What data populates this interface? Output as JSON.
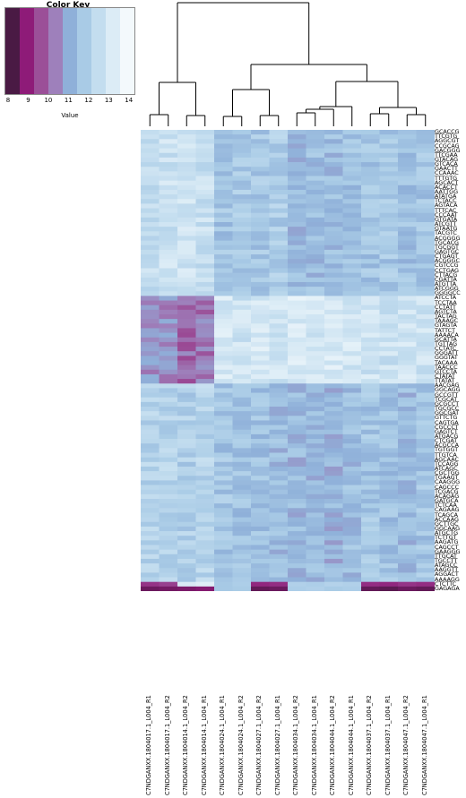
{
  "color_key": {
    "title": "Color Key",
    "xlabel": "Value",
    "ticks": [
      "8",
      "9",
      "10",
      "11",
      "12",
      "13",
      "14"
    ],
    "colors": [
      "#4a1a44",
      "#8e1b78",
      "#9b4f98",
      "#9e80bb",
      "#8fb0d9",
      "#a9cbe6",
      "#c3ddef",
      "#dcecf6",
      "#f3f9fc"
    ],
    "range": [
      8,
      14.5
    ]
  },
  "chart_data": {
    "type": "heatmap",
    "columns": [
      "C7NDGANXX.1804017.1_L004_R1",
      "C7NDGANXX.1804017.1_L004_R2",
      "C7NDGANXX.1804014.1_L004_R2",
      "C7NDGANXX.1804014.1_L004_R1",
      "C7NDGANXX.1804024.1_L004_R1",
      "C7NDGANXX.1804024.1_L004_R2",
      "C7NDGANXX.1804027.1_L004_R2",
      "C7NDGANXX.1804027.1_L004_R1",
      "C7NDGANXX.1804034.1_L004_R2",
      "C7NDGANXX.1804034.1_L004_R1",
      "C7NDGANXX.1804044.1_L004_R2",
      "C7NDGANXX.1804044.1_L004_R1",
      "C7NDGANXX.1804037.1_L004_R2",
      "C7NDGANXX.1804037.1_L004_R1",
      "C7NDGANXX.1804047.1_L004_R2",
      "C7NDGANXX.1804047.1_L004_R1"
    ],
    "rows": [
      "GCACCG",
      "TTCGTG",
      "AGGCGT",
      "CCGCAG",
      "GACGGG",
      "TTCGAA",
      "GTACAG",
      "GTCACA",
      "GAACTT",
      "CCAAAC",
      "TTTGTG",
      "AGCACT",
      "ACACCT",
      "AATTGG",
      "ATATGA",
      "TCTACC",
      "AGTACA",
      "TTTCAC",
      "CCCAAT",
      "GTGATA",
      "ATCGTT",
      "GTAATG",
      "TACGTC",
      "ACGGGG",
      "TGCACG",
      "TGCGGT",
      "GAGTGC",
      "CTGAGT",
      "ACGGGC",
      "CGTCCG",
      "CCTGAG",
      "CTTACG",
      "CGATTA",
      "ATGTTA",
      "ATCGGG",
      "GGGGCC",
      "ATCCTA",
      "TCCTAA",
      "CCTATT",
      "AGTCTA",
      "TACTAG",
      "TAAAGC",
      "GTAGTA",
      "TATTCT",
      "AAAACA",
      "GCATTA",
      "TGTTAG",
      "CCTATC",
      "GGGATT",
      "GGGTAT",
      "TACAAA",
      "TAACCC",
      "GTCCTA",
      "CTATAT",
      "TTATAT",
      "AACGAG",
      "GGCAGG",
      "GCCGTT",
      "TCGCAT",
      "GCGCCT",
      "TGCGCC",
      "GGCGAT",
      "GTTCTG",
      "CAGTGA",
      "CGCCCT",
      "GAGTCT",
      "ATGACG",
      "CTCGAT",
      "ACGCCA",
      "TGTGGT",
      "TTGTCA",
      "AGCAAC",
      "TCCAGG",
      "ATCAGC",
      "CGCTGG",
      "TGAAGT",
      "CAAGGG",
      "CAGCCC",
      "TCGACG",
      "ACAGAG",
      "GATGCA",
      "TCTCAA",
      "CAGAAG",
      "TCAGCA",
      "ACCAAG",
      "GCTTGC",
      "GGCAAG",
      "ATGCTG",
      "TCTTGT",
      "AAGATG",
      "CAGCCT",
      "GAAGGG",
      "TTGCAT",
      "TGCCTT",
      "ATAGCC",
      "AAGGTT",
      "AGGACT",
      "AAAAGG",
      "CTCTTC",
      "GAGAGA"
    ],
    "value_range": [
      8,
      14.5
    ],
    "blocks": [
      {
        "rows": [
          0,
          35
        ],
        "values": [
          12.9,
          13.1,
          13.3,
          13.0,
          11.9,
          12.1,
          12.0,
          12.2,
          11.6,
          11.7,
          11.7,
          11.8,
          11.9,
          12.0,
          11.8,
          11.9
        ]
      },
      {
        "rows": [
          36,
          54
        ],
        "values": [
          10.8,
          10.7,
          10.1,
          10.3,
          13.4,
          13.2,
          13.5,
          13.3,
          13.6,
          13.4,
          13.5,
          13.4,
          13.2,
          13.1,
          13.3,
          13.2
        ]
      },
      {
        "rows": [
          55,
          97
        ],
        "values": [
          12.4,
          12.5,
          12.3,
          12.5,
          11.9,
          11.8,
          11.8,
          11.6,
          11.5,
          11.6,
          11.4,
          11.7,
          11.9,
          11.8,
          11.6,
          11.9
        ]
      },
      {
        "rows": [
          98,
          98
        ],
        "values": [
          9.2,
          9.4,
          13.6,
          13.8,
          12.0,
          12.2,
          9.0,
          9.1,
          12.3,
          12.2,
          12.4,
          12.3,
          9.1,
          9.0,
          9.2,
          9.1
        ]
      },
      {
        "rows": [
          99,
          99
        ],
        "values": [
          8.4,
          8.5,
          8.6,
          8.7,
          12.0,
          12.1,
          8.3,
          8.4,
          12.2,
          12.3,
          12.1,
          12.2,
          8.3,
          8.2,
          8.4,
          8.3
        ]
      }
    ]
  }
}
